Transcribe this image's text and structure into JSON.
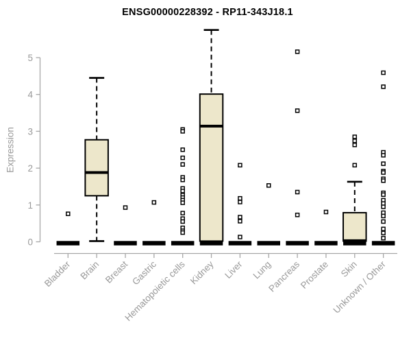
{
  "title": "ENSG00000228392 - RP11-343J18.1",
  "colors": {
    "box_fill": "#ede7cb",
    "box_stroke": "#000000",
    "median": "#000000",
    "whisker": "#000000",
    "outlier_stroke": "#000000",
    "outlier_fill": "#ffffff",
    "axis": "#a6a6a6",
    "tick_label": "#999999",
    "title_color": "#000000",
    "background": "#ffffff"
  },
  "chart_data": {
    "type": "boxplot",
    "title": "ENSG00000228392 - RP11-343J18.1",
    "xlabel": "",
    "ylabel": "Expression",
    "ylim": [
      0,
      5.8
    ],
    "yticks": [
      0,
      1,
      2,
      3,
      4,
      5
    ],
    "grid": false,
    "legend": "none",
    "categories": [
      "Bladder",
      "Brain",
      "Breast",
      "Gastric",
      "Hematopoietic cells",
      "Kidney",
      "Liver",
      "Lung",
      "Pancreas",
      "Prostate",
      "Skin",
      "Unknown / Other"
    ],
    "series": [
      {
        "name": "Bladder",
        "q1": 0,
        "median": 0,
        "q3": 0,
        "whisker_low": null,
        "whisker_high": null,
        "outliers": [
          0.76
        ]
      },
      {
        "name": "Brain",
        "q1": 1.25,
        "median": 1.88,
        "q3": 2.77,
        "whisker_low": 0.02,
        "whisker_high": 4.45,
        "outliers": []
      },
      {
        "name": "Breast",
        "q1": 0,
        "median": 0,
        "q3": 0,
        "whisker_low": null,
        "whisker_high": null,
        "outliers": [
          0.93
        ]
      },
      {
        "name": "Gastric",
        "q1": 0,
        "median": 0,
        "q3": 0,
        "whisker_low": null,
        "whisker_high": null,
        "outliers": [
          1.07
        ]
      },
      {
        "name": "Hematopoietic cells",
        "q1": 0,
        "median": 0,
        "q3": 0,
        "whisker_low": null,
        "whisker_high": null,
        "outliers": [
          3.05,
          3.0,
          2.5,
          2.28,
          2.1,
          1.75,
          1.68,
          1.45,
          1.38,
          1.27,
          1.2,
          1.13,
          1.06,
          0.78,
          0.63,
          0.55,
          0.38,
          0.3,
          0.25
        ]
      },
      {
        "name": "Kidney",
        "q1": 0.02,
        "median": 3.14,
        "q3": 4.01,
        "whisker_low": null,
        "whisker_high": 5.75,
        "outliers": []
      },
      {
        "name": "Liver",
        "q1": 0,
        "median": 0,
        "q3": 0,
        "whisker_low": null,
        "whisker_high": null,
        "outliers": [
          2.08,
          1.18,
          1.08,
          0.67,
          0.56,
          0.13
        ]
      },
      {
        "name": "Lung",
        "q1": 0,
        "median": 0,
        "q3": 0,
        "whisker_low": null,
        "whisker_high": null,
        "outliers": [
          1.53
        ]
      },
      {
        "name": "Pancreas",
        "q1": 0,
        "median": 0,
        "q3": 0,
        "whisker_low": null,
        "whisker_high": null,
        "outliers": [
          5.16,
          3.56,
          1.35,
          0.73
        ]
      },
      {
        "name": "Prostate",
        "q1": 0,
        "median": 0,
        "q3": 0,
        "whisker_low": null,
        "whisker_high": null,
        "outliers": [
          0.81
        ]
      },
      {
        "name": "Skin",
        "q1": 0.02,
        "median": 0.03,
        "q3": 0.79,
        "whisker_low": null,
        "whisker_high": 1.63,
        "outliers": [
          2.85,
          2.74,
          2.63,
          2.08
        ]
      },
      {
        "name": "Unknown / Other",
        "q1": 0,
        "median": 0,
        "q3": 0,
        "whisker_low": null,
        "whisker_high": null,
        "outliers": [
          4.59,
          4.21,
          2.43,
          2.35,
          2.12,
          1.92,
          1.88,
          1.71,
          1.66,
          1.33,
          1.28,
          1.13,
          1.04,
          0.95,
          0.79,
          0.7,
          0.55,
          0.35,
          0.24,
          0.1
        ]
      }
    ]
  }
}
